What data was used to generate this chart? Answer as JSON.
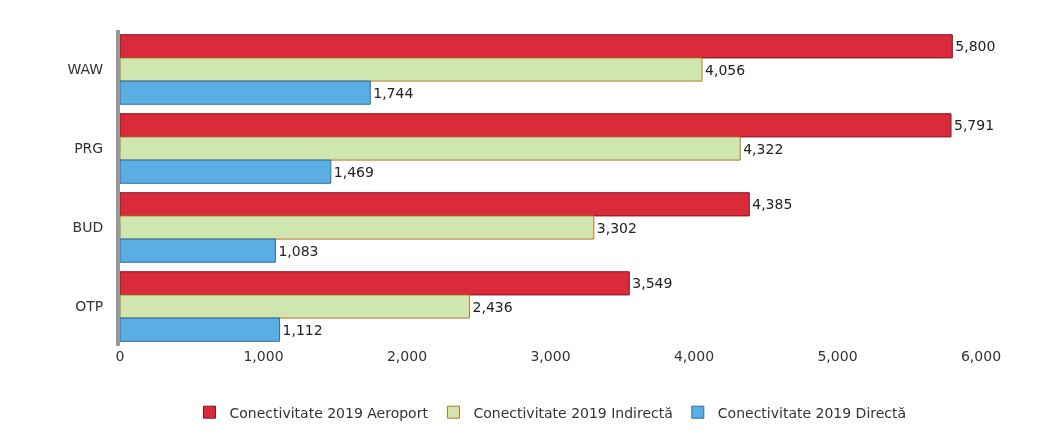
{
  "chart_data": {
    "type": "bar",
    "orientation": "horizontal",
    "categories": [
      "WAW",
      "PRG",
      "BUD",
      "OTP"
    ],
    "series": [
      {
        "name": "Conectivitate 2019 Aeroport",
        "color": "#d92b3a",
        "values": [
          5800,
          5791,
          4385,
          3549
        ],
        "value_labels": [
          "5,800",
          "5,791",
          "4,385",
          "3,549"
        ]
      },
      {
        "name": "Conectivitate 2019 Indirectă",
        "color": "#cfe6b0",
        "values": [
          4056,
          4322,
          3302,
          2436
        ],
        "value_labels": [
          "4,056",
          "4,322",
          "3,302",
          "2,436"
        ]
      },
      {
        "name": "Conectivitate 2019 Directă",
        "color": "#5aaee3",
        "values": [
          1744,
          1469,
          1083,
          1112
        ],
        "value_labels": [
          "1,744",
          "1,469",
          "1,083",
          "1,112"
        ]
      }
    ],
    "xlim": [
      0,
      6000
    ],
    "xticks": [
      {
        "value": 0,
        "label": "0"
      },
      {
        "value": 1000,
        "label": "1,000"
      },
      {
        "value": 2000,
        "label": "2,000"
      },
      {
        "value": 3000,
        "label": "3,000"
      },
      {
        "value": 4000,
        "label": "4,000"
      },
      {
        "value": 5000,
        "label": "5,000"
      },
      {
        "value": 6000,
        "label": "6,000"
      }
    ],
    "legend": "bottom"
  }
}
